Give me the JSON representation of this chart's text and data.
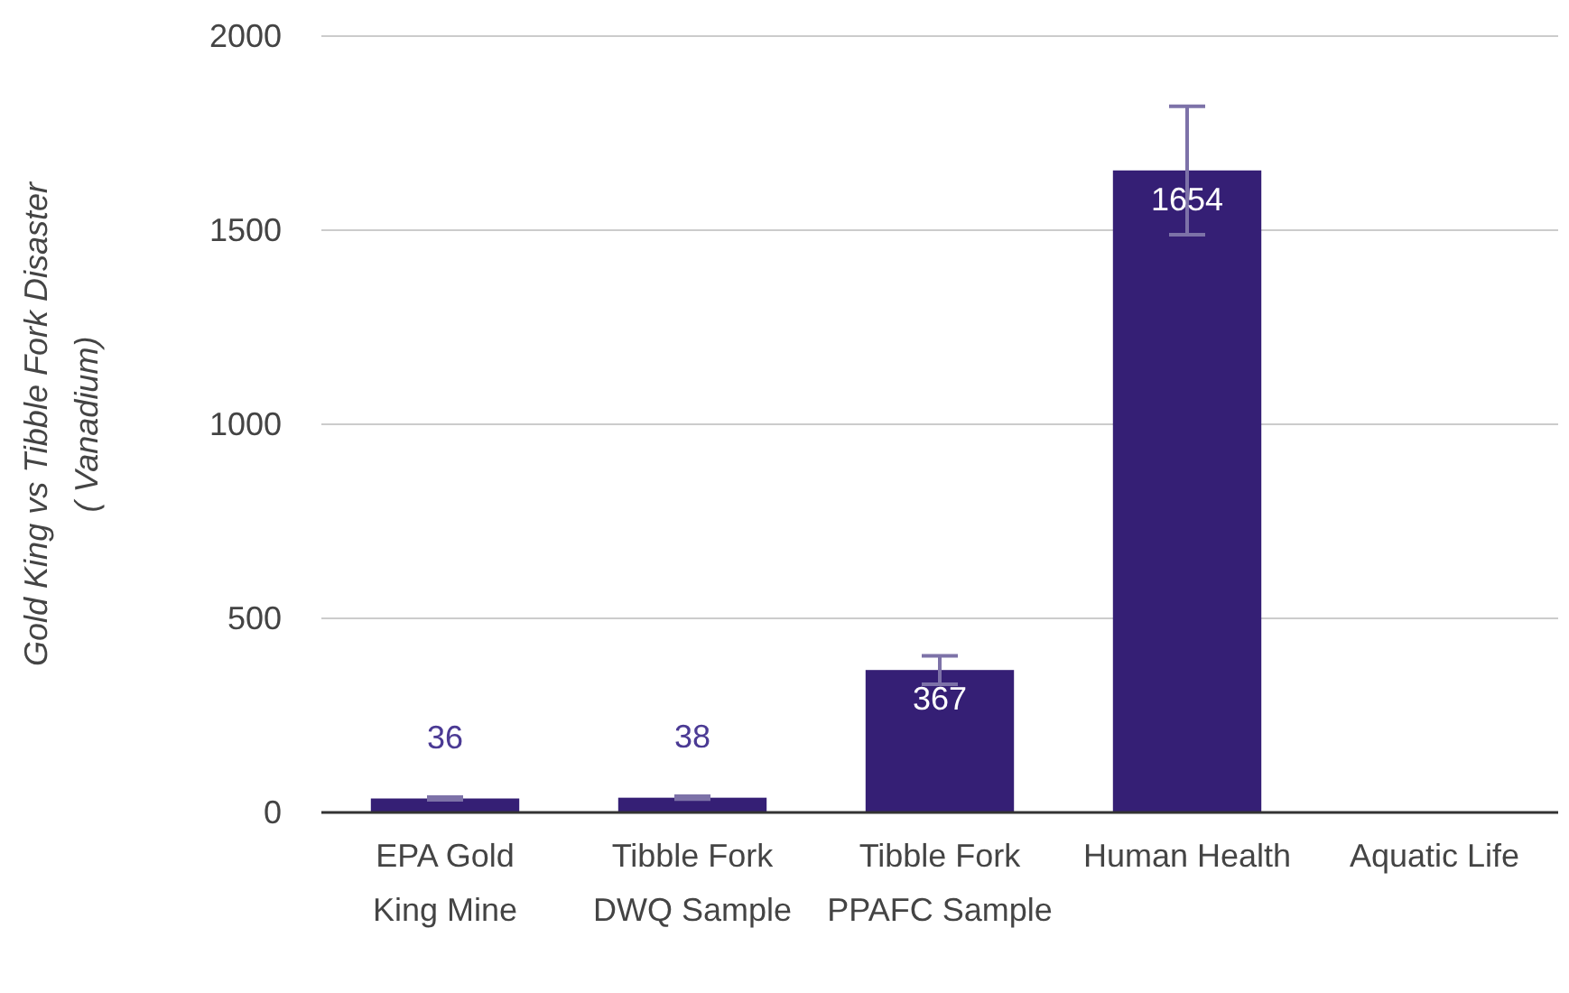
{
  "chart_data": {
    "type": "bar",
    "ylabel": "Gold King vs Tibble Fork Disaster ( Vanadium)",
    "categories": [
      "EPA Gold King Mine",
      "Tibble Fork DWQ Sample",
      "Tibble Fork PPAFC Sample",
      "Human Health",
      "Aquatic Life"
    ],
    "values": [
      36,
      38,
      367,
      1654,
      null
    ],
    "errors": [
      3.6,
      3.8,
      36.7,
      165.4,
      null
    ],
    "color": "#351f75",
    "ylim": [
      0,
      2000
    ],
    "yticks": [
      0,
      500,
      1000,
      1500,
      2000
    ],
    "grid": "y",
    "data_labels": true
  }
}
